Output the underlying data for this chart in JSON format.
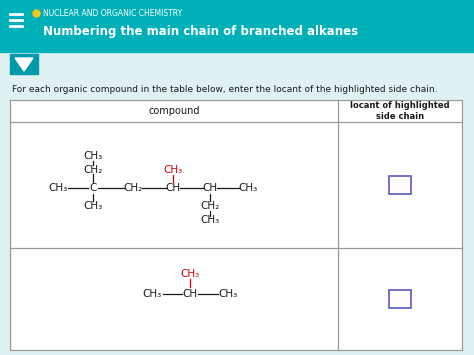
{
  "title_bg_color": "#00b0b9",
  "title_label": "NUCLEAR AND ORGANIC CHEMISTRY",
  "title_main": "Numbering the main chain of branched alkanes",
  "instruction": "For each organic compound in the table below, enter the locant of the highlighted side chain.",
  "col1_header": "compound",
  "col2_header": "locant of highlighted\nside chain",
  "red_color": "#cc0000",
  "black_color": "#1a1a1a",
  "input_box_color": "#6666cc",
  "fig_bg": "#dff2f3",
  "header_bg_color": "#00b0b9",
  "dropdown_bg": "#009aaa",
  "table_line_color": "#999999"
}
